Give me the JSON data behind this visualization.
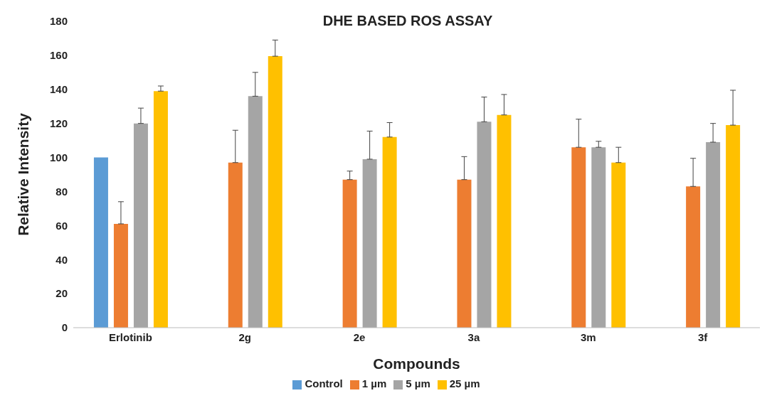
{
  "chart_data": {
    "type": "bar",
    "title": "DHE BASED ROS ASSAY",
    "xlabel": "Compounds",
    "ylabel": "Relative Intensity",
    "categories": [
      "Erlotinib",
      "2g",
      "2e",
      "3a",
      "3m",
      "3f"
    ],
    "series": [
      {
        "name": "Control",
        "color": "#5b9bd5",
        "values": [
          100,
          null,
          null,
          null,
          null,
          null
        ]
      },
      {
        "name": "1 µm",
        "color": "#ed7d31",
        "values": [
          61,
          97,
          87,
          87,
          106,
          83
        ],
        "errors": [
          [
            61,
            74
          ],
          [
            97,
            116
          ],
          [
            87,
            92
          ],
          [
            87,
            100.5
          ],
          [
            106,
            122.5
          ],
          [
            83,
            99.5
          ]
        ]
      },
      {
        "name": "5 µm",
        "color": "#a5a5a5",
        "values": [
          120,
          136,
          99,
          121,
          106,
          109
        ],
        "errors": [
          [
            120,
            129
          ],
          [
            136,
            150
          ],
          [
            99,
            115.5
          ],
          [
            121,
            135.5
          ],
          [
            106,
            109.5
          ],
          [
            109,
            120
          ]
        ]
      },
      {
        "name": "25 µm",
        "color": "#ffc000",
        "values": [
          139,
          159.5,
          112,
          125,
          97,
          119
        ],
        "errors": [
          [
            139,
            142
          ],
          [
            159.5,
            169
          ],
          [
            112,
            120.5
          ],
          [
            125,
            137
          ],
          [
            97,
            106
          ],
          [
            119,
            139.5
          ]
        ]
      }
    ],
    "ylim": [
      0,
      180
    ],
    "yticks": [
      0,
      20,
      40,
      60,
      80,
      100,
      120,
      140,
      160,
      180
    ],
    "grid": false,
    "legend": "bottom"
  }
}
